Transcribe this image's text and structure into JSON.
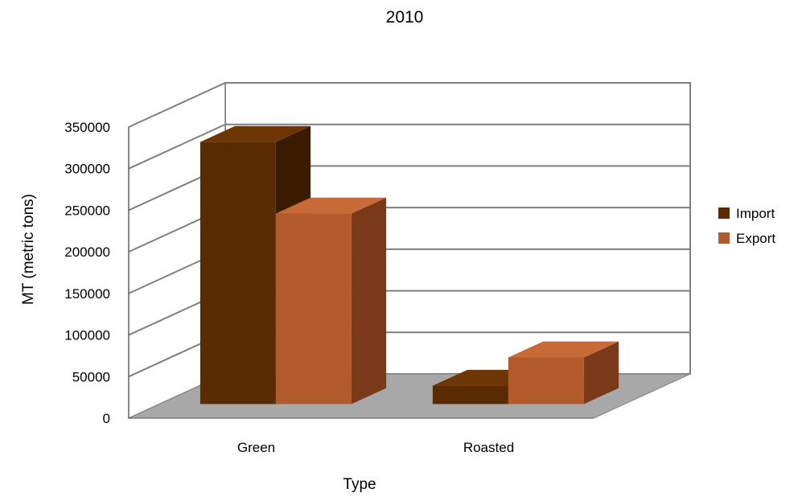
{
  "chart_data": {
    "type": "bar",
    "title": "2010",
    "xlabel": "Type",
    "ylabel": "MT (metric tons)",
    "categories": [
      "Green",
      "Roasted"
    ],
    "series": [
      {
        "name": "Import",
        "values": [
          315000,
          22000
        ]
      },
      {
        "name": "Export",
        "values": [
          229000,
          56000
        ]
      }
    ],
    "ylim": [
      0,
      350000
    ],
    "yticks": [
      "0",
      "50000",
      "100000",
      "150000",
      "200000",
      "250000",
      "300000",
      "350000"
    ],
    "grid": true,
    "legend": "right",
    "colors": {
      "import": "#5a2a00",
      "import_side": "#3a1a00",
      "import_top": "#6e3505",
      "export": "#b25a2c",
      "export_side": "#7a3a1a",
      "export_top": "#c86a38",
      "floor": "#a8a8a8",
      "wall": "#ffffff",
      "grid": "#7f7f7f"
    }
  }
}
